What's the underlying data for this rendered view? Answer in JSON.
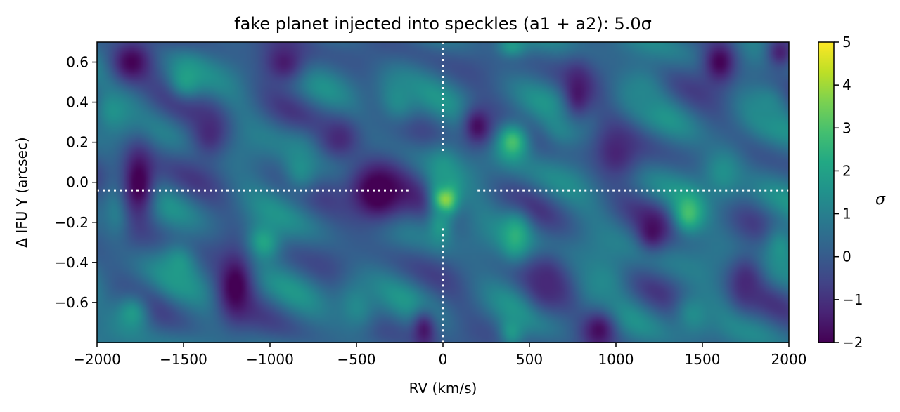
{
  "chart_data": {
    "type": "heatmap",
    "title": "fake planet injected into speckles (a1 + a2): 5.0σ",
    "xlabel": "RV (km/s)",
    "ylabel": "Δ IFU Y (arcsec)",
    "colorbar_label": "σ",
    "xlim": [
      -2000,
      2000
    ],
    "ylim": [
      -0.8,
      0.7
    ],
    "clim": [
      -2,
      5
    ],
    "colormap": "viridis",
    "x_ticks": [
      -2000,
      -1500,
      -1000,
      -500,
      0,
      500,
      1000,
      1500,
      2000
    ],
    "x_tick_labels": [
      "−2000",
      "−1500",
      "−1000",
      "−500",
      "0",
      "500",
      "1000",
      "1500",
      "2000"
    ],
    "y_ticks": [
      0.6,
      0.4,
      0.2,
      0.0,
      -0.2,
      -0.4,
      -0.6
    ],
    "y_tick_labels": [
      "0.6",
      "0.4",
      "0.2",
      "0.0",
      "−0.2",
      "−0.4",
      "−0.6"
    ],
    "colorbar_ticks": [
      5,
      4,
      3,
      2,
      1,
      0,
      -1,
      -2
    ],
    "colorbar_tick_labels": [
      "5",
      "4",
      "3",
      "2",
      "1",
      "0",
      "−1",
      "−2"
    ],
    "crosshair": {
      "x": 0,
      "y": -0.04,
      "style": "dotted",
      "color": "#ffffff"
    },
    "peak": {
      "x": 10,
      "y": -0.08,
      "value": 5.0
    },
    "features": [
      {
        "x": 10,
        "y": -0.08,
        "value": 5.0,
        "sx": 50,
        "sy": 0.06
      },
      {
        "x": 0,
        "y": 0.05,
        "value": 1.8,
        "sx": 60,
        "sy": 0.08
      },
      {
        "x": -20,
        "y": -0.22,
        "value": 1.8,
        "sx": 50,
        "sy": 0.07
      },
      {
        "x": 400,
        "y": 0.2,
        "value": 3.0,
        "sx": 70,
        "sy": 0.07
      },
      {
        "x": 420,
        "y": -0.27,
        "value": 2.5,
        "sx": 60,
        "sy": 0.08
      },
      {
        "x": 1420,
        "y": -0.15,
        "value": 3.0,
        "sx": 60,
        "sy": 0.07
      },
      {
        "x": -1040,
        "y": -0.3,
        "value": 2.2,
        "sx": 70,
        "sy": 0.07
      },
      {
        "x": -1480,
        "y": 0.52,
        "value": 2.0,
        "sx": 70,
        "sy": 0.07
      },
      {
        "x": -1530,
        "y": -0.42,
        "value": 1.8,
        "sx": 70,
        "sy": 0.08
      },
      {
        "x": -1800,
        "y": -0.66,
        "value": 1.8,
        "sx": 70,
        "sy": 0.07
      },
      {
        "x": -1900,
        "y": 0.36,
        "value": 1.6,
        "sx": 80,
        "sy": 0.08
      },
      {
        "x": 1620,
        "y": 0.05,
        "value": 1.5,
        "sx": 90,
        "sy": 0.1
      },
      {
        "x": 1950,
        "y": -0.34,
        "value": 1.6,
        "sx": 70,
        "sy": 0.1
      },
      {
        "x": 1870,
        "y": 0.38,
        "value": 1.3,
        "sx": 80,
        "sy": 0.08
      },
      {
        "x": -820,
        "y": 0.08,
        "value": 1.5,
        "sx": 80,
        "sy": 0.1
      },
      {
        "x": -260,
        "y": 0.42,
        "value": 1.4,
        "sx": 90,
        "sy": 0.1
      },
      {
        "x": 700,
        "y": 0.3,
        "value": 1.4,
        "sx": 80,
        "sy": 0.08
      },
      {
        "x": 920,
        "y": -0.5,
        "value": 1.3,
        "sx": 90,
        "sy": 0.1
      },
      {
        "x": 1150,
        "y": 0.45,
        "value": 1.2,
        "sx": 90,
        "sy": 0.1
      },
      {
        "x": 400,
        "y": -0.74,
        "value": 1.8,
        "sx": 50,
        "sy": 0.06
      },
      {
        "x": 400,
        "y": 0.68,
        "value": 1.8,
        "sx": 60,
        "sy": 0.04
      },
      {
        "x": -1880,
        "y": -0.14,
        "value": 1.3,
        "sx": 60,
        "sy": 0.1
      },
      {
        "x": -500,
        "y": -0.62,
        "value": 1.3,
        "sx": 90,
        "sy": 0.1
      },
      {
        "x": 1450,
        "y": -0.66,
        "value": 1.4,
        "sx": 80,
        "sy": 0.08
      },
      {
        "x": -1760,
        "y": 0.0,
        "value": -2.2,
        "sx": 70,
        "sy": 0.14
      },
      {
        "x": -1200,
        "y": -0.52,
        "value": -2.2,
        "sx": 70,
        "sy": 0.12
      },
      {
        "x": -380,
        "y": -0.05,
        "value": -2.4,
        "sx": 130,
        "sy": 0.12
      },
      {
        "x": -1800,
        "y": 0.6,
        "value": -2.0,
        "sx": 90,
        "sy": 0.08
      },
      {
        "x": 1600,
        "y": 0.6,
        "value": -2.0,
        "sx": 70,
        "sy": 0.08
      },
      {
        "x": 200,
        "y": 0.28,
        "value": -1.8,
        "sx": 60,
        "sy": 0.07
      },
      {
        "x": 900,
        "y": -0.74,
        "value": -1.8,
        "sx": 70,
        "sy": 0.07
      },
      {
        "x": 1210,
        "y": -0.24,
        "value": -1.8,
        "sx": 60,
        "sy": 0.07
      },
      {
        "x": 780,
        "y": 0.45,
        "value": -1.6,
        "sx": 60,
        "sy": 0.1
      },
      {
        "x": -110,
        "y": -0.74,
        "value": -1.6,
        "sx": 50,
        "sy": 0.07
      },
      {
        "x": -920,
        "y": 0.6,
        "value": -1.5,
        "sx": 90,
        "sy": 0.08
      },
      {
        "x": 1000,
        "y": 0.15,
        "value": -1.3,
        "sx": 90,
        "sy": 0.1
      },
      {
        "x": -600,
        "y": 0.22,
        "value": -1.2,
        "sx": 90,
        "sy": 0.08
      },
      {
        "x": 600,
        "y": -0.5,
        "value": -1.2,
        "sx": 80,
        "sy": 0.1
      },
      {
        "x": 1750,
        "y": -0.5,
        "value": -1.2,
        "sx": 70,
        "sy": 0.1
      },
      {
        "x": -1350,
        "y": 0.25,
        "value": -1.2,
        "sx": 80,
        "sy": 0.1
      },
      {
        "x": 1950,
        "y": 0.65,
        "value": -1.4,
        "sx": 60,
        "sy": 0.06
      }
    ],
    "grid": false
  }
}
